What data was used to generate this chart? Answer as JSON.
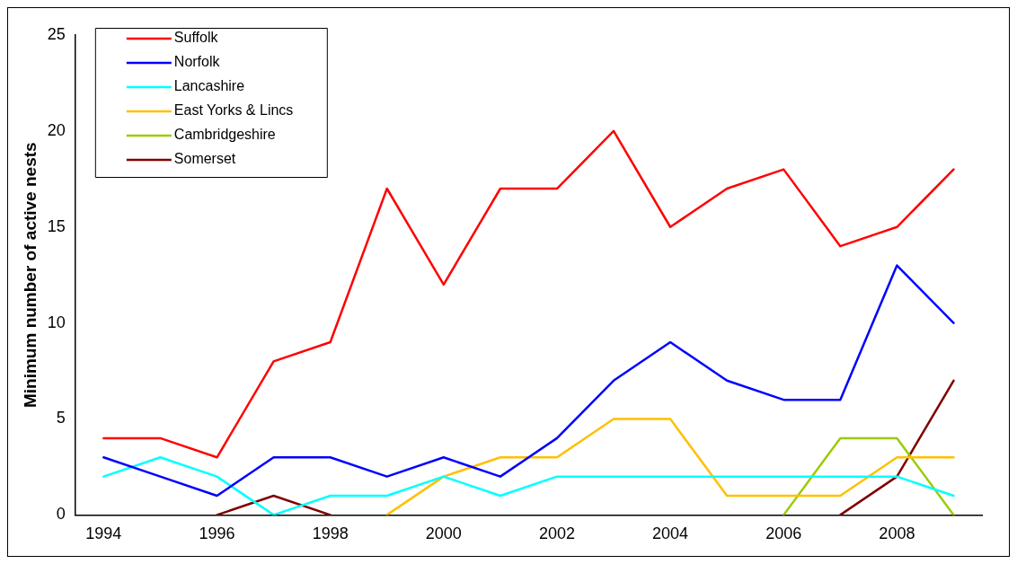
{
  "chart_data": {
    "type": "line",
    "ylabel": "Minimum number of active nests",
    "categories": [
      "1994",
      null,
      "1996",
      null,
      "1998",
      null,
      "2000",
      null,
      "2002",
      null,
      "2004",
      null,
      "2006",
      null,
      "2008",
      null
    ],
    "ylim": [
      0,
      25
    ],
    "yticks": [
      0,
      5,
      10,
      15,
      20,
      25
    ],
    "grid": false,
    "legend": "top left",
    "marker": "none",
    "line_style": "solid",
    "series": [
      {
        "name": "Suffolk",
        "color": "#ff0000",
        "values": [
          4,
          4,
          3,
          8,
          9,
          17,
          12,
          17,
          17,
          20,
          15,
          17,
          18,
          14,
          15,
          18
        ]
      },
      {
        "name": "Norfolk",
        "color": "#0000ff",
        "values": [
          3,
          2,
          1,
          3,
          3,
          2,
          3,
          2,
          4,
          7,
          9,
          7,
          6,
          6,
          13,
          10
        ]
      },
      {
        "name": "Lancashire",
        "color": "#00ffff",
        "values": [
          2,
          3,
          2,
          0,
          1,
          1,
          2,
          1,
          2,
          2,
          2,
          2,
          2,
          2,
          2,
          1
        ]
      },
      {
        "name": "East Yorks & Lincs",
        "color": "#ffc000",
        "values": [
          null,
          null,
          null,
          null,
          null,
          0,
          2,
          3,
          3,
          5,
          5,
          1,
          1,
          1,
          3,
          3
        ]
      },
      {
        "name": "Cambridgeshire",
        "color": "#99cc00",
        "values": [
          null,
          null,
          null,
          null,
          null,
          null,
          null,
          null,
          null,
          null,
          null,
          null,
          0,
          4,
          4,
          0
        ]
      },
      {
        "name": "Somerset",
        "color": "#800000",
        "values": [
          null,
          null,
          0,
          1,
          0,
          null,
          null,
          null,
          null,
          null,
          null,
          null,
          null,
          0,
          2,
          7
        ]
      }
    ]
  }
}
